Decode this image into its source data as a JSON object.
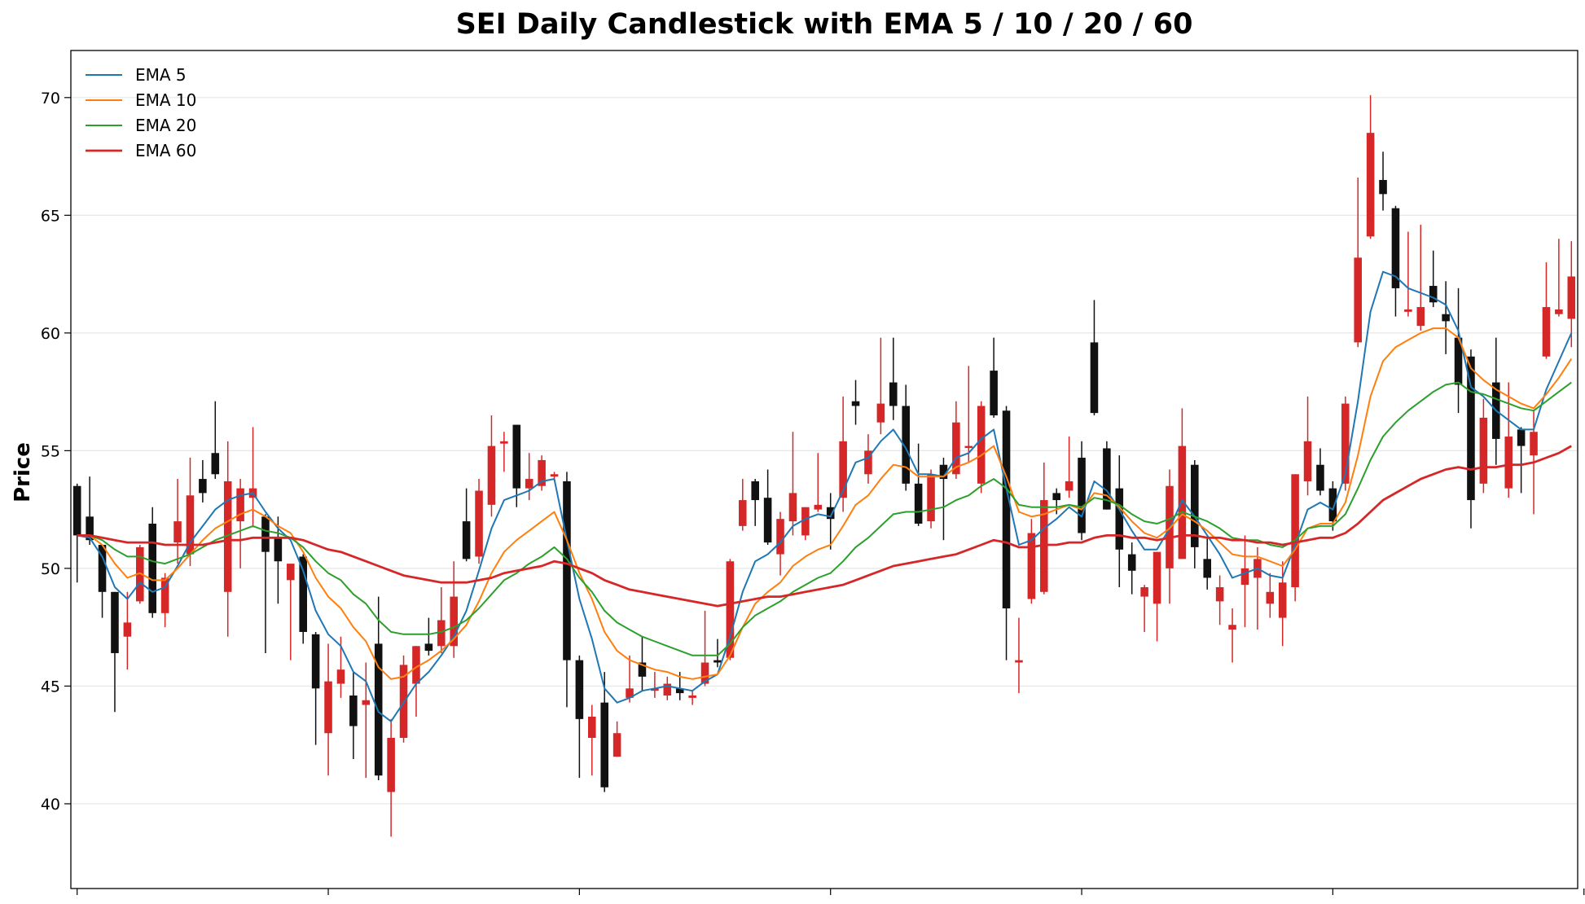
{
  "chart_data": {
    "type": "candlestick",
    "title": "SEI Daily Candlestick with EMA 5 / 10 / 20 / 60",
    "ylabel": "Price",
    "xlabel": "",
    "ylim": [
      36.4,
      72.0
    ],
    "xlim": [
      -0.5,
      119.5
    ],
    "yticks": [
      40,
      45,
      50,
      55,
      60,
      65,
      70
    ],
    "x_ticks_at": [
      0,
      20,
      40,
      60,
      80,
      100,
      120
    ],
    "grid": {
      "y": true,
      "x": false
    },
    "legend": {
      "position": "top-left",
      "entries": [
        "EMA 5",
        "EMA 10",
        "EMA 20",
        "EMA 60"
      ]
    },
    "colors": {
      "bullish": "#d62728",
      "bearish": "#111111",
      "EMA 5": "#1f77b4",
      "EMA 10": "#ff7f0e",
      "EMA 20": "#2ca02c",
      "EMA 60": "#d62728"
    },
    "candles_ohlc": [
      [
        53.5,
        53.6,
        49.4,
        51.4
      ],
      [
        52.2,
        53.9,
        51.0,
        51.2
      ],
      [
        51.0,
        51.0,
        47.9,
        49.0
      ],
      [
        49.0,
        49.0,
        43.9,
        46.4
      ],
      [
        47.1,
        49.0,
        45.7,
        47.7
      ],
      [
        48.6,
        51.0,
        48.5,
        50.9
      ],
      [
        51.9,
        52.6,
        47.9,
        48.1
      ],
      [
        48.1,
        49.8,
        47.5,
        49.6
      ],
      [
        51.1,
        53.8,
        50.2,
        52.0
      ],
      [
        50.6,
        54.7,
        50.1,
        53.1
      ],
      [
        53.8,
        54.6,
        52.8,
        53.2
      ],
      [
        54.9,
        57.1,
        53.8,
        54.0
      ],
      [
        49.0,
        55.4,
        47.1,
        53.7
      ],
      [
        52.0,
        53.8,
        50.0,
        53.4
      ],
      [
        53.0,
        56.0,
        51.8,
        53.4
      ],
      [
        52.2,
        52.3,
        46.4,
        50.7
      ],
      [
        51.3,
        52.2,
        48.5,
        50.3
      ],
      [
        49.5,
        50.2,
        46.1,
        50.2
      ],
      [
        50.5,
        50.6,
        46.8,
        47.3
      ],
      [
        47.2,
        47.3,
        42.5,
        44.9
      ],
      [
        43.0,
        46.8,
        41.2,
        45.2
      ],
      [
        45.1,
        47.1,
        44.5,
        45.7
      ],
      [
        44.6,
        45.6,
        41.9,
        43.3
      ],
      [
        44.2,
        46.0,
        41.1,
        44.4
      ],
      [
        46.8,
        48.8,
        41.0,
        41.2
      ],
      [
        40.5,
        43.6,
        38.6,
        42.8
      ],
      [
        42.8,
        46.3,
        42.6,
        45.9
      ],
      [
        45.1,
        46.7,
        43.7,
        46.7
      ],
      [
        46.8,
        47.9,
        46.3,
        46.5
      ],
      [
        46.7,
        49.2,
        46.4,
        47.8
      ],
      [
        46.7,
        50.3,
        46.2,
        48.8
      ],
      [
        52.0,
        53.4,
        50.3,
        50.4
      ],
      [
        50.5,
        53.8,
        50.2,
        53.3
      ],
      [
        52.7,
        56.5,
        52.2,
        55.2
      ],
      [
        55.3,
        55.8,
        54.1,
        55.4
      ],
      [
        56.1,
        56.1,
        52.6,
        53.4
      ],
      [
        53.4,
        54.9,
        52.9,
        53.8
      ],
      [
        53.5,
        54.8,
        53.3,
        54.6
      ],
      [
        53.9,
        54.1,
        53.8,
        54.0
      ],
      [
        53.7,
        54.1,
        44.1,
        46.1
      ],
      [
        46.1,
        46.3,
        41.1,
        43.6
      ],
      [
        42.8,
        44.2,
        41.2,
        43.7
      ],
      [
        44.3,
        45.6,
        40.5,
        40.7
      ],
      [
        42.0,
        43.5,
        42.0,
        43.0
      ],
      [
        44.5,
        46.3,
        44.3,
        44.9
      ],
      [
        46.0,
        47.1,
        44.8,
        45.4
      ],
      [
        44.8,
        45.6,
        44.5,
        44.9
      ],
      [
        44.6,
        45.4,
        44.4,
        45.1
      ],
      [
        44.9,
        45.6,
        44.4,
        44.7
      ],
      [
        44.5,
        44.8,
        44.2,
        44.6
      ],
      [
        45.1,
        48.2,
        45.0,
        46.0
      ],
      [
        46.1,
        47.0,
        45.8,
        46.0
      ],
      [
        46.2,
        50.4,
        46.1,
        50.3
      ],
      [
        51.8,
        53.8,
        51.6,
        52.9
      ],
      [
        53.7,
        53.8,
        51.8,
        52.9
      ],
      [
        53.0,
        54.2,
        51.0,
        51.1
      ],
      [
        50.6,
        52.4,
        49.7,
        52.1
      ],
      [
        52.0,
        55.8,
        51.4,
        53.2
      ],
      [
        51.4,
        52.6,
        51.2,
        52.6
      ],
      [
        52.5,
        54.9,
        52.4,
        52.7
      ],
      [
        52.6,
        53.2,
        50.8,
        52.1
      ],
      [
        53.0,
        57.3,
        52.4,
        55.4
      ],
      [
        57.1,
        58.0,
        56.1,
        56.9
      ],
      [
        54.0,
        55.7,
        53.6,
        55.0
      ],
      [
        56.2,
        59.8,
        55.7,
        57.0
      ],
      [
        57.9,
        59.8,
        56.3,
        56.9
      ],
      [
        56.9,
        57.8,
        53.3,
        53.6
      ],
      [
        53.6,
        55.3,
        51.8,
        51.9
      ],
      [
        52.0,
        54.2,
        51.7,
        54.0
      ],
      [
        54.4,
        54.7,
        51.2,
        53.8
      ],
      [
        54.0,
        57.1,
        53.8,
        56.2
      ],
      [
        55.2,
        58.6,
        54.5,
        55.2
      ],
      [
        53.6,
        57.1,
        53.2,
        56.9
      ],
      [
        58.4,
        59.8,
        56.4,
        56.5
      ],
      [
        56.7,
        56.9,
        46.1,
        48.3
      ],
      [
        46.0,
        47.9,
        44.7,
        46.1
      ],
      [
        48.7,
        52.1,
        48.5,
        51.5
      ],
      [
        49.0,
        54.5,
        48.9,
        52.9
      ],
      [
        53.2,
        53.4,
        52.3,
        52.9
      ],
      [
        53.3,
        55.6,
        53.0,
        53.7
      ],
      [
        54.7,
        55.4,
        51.2,
        51.5
      ],
      [
        59.6,
        61.4,
        56.5,
        56.6
      ],
      [
        55.1,
        55.4,
        52.5,
        52.5
      ],
      [
        53.4,
        54.8,
        49.2,
        50.8
      ],
      [
        50.6,
        51.1,
        48.9,
        49.9
      ],
      [
        48.8,
        49.3,
        47.3,
        49.2
      ],
      [
        48.5,
        50.7,
        46.9,
        50.7
      ],
      [
        50.0,
        54.2,
        48.5,
        53.5
      ],
      [
        50.4,
        56.8,
        50.4,
        55.2
      ],
      [
        54.4,
        54.6,
        50.0,
        50.9
      ],
      [
        50.4,
        51.3,
        49.1,
        49.6
      ],
      [
        48.6,
        49.7,
        47.6,
        49.2
      ],
      [
        47.4,
        48.3,
        46.0,
        47.6
      ],
      [
        49.3,
        51.4,
        47.5,
        50.0
      ],
      [
        49.6,
        50.9,
        47.4,
        50.4
      ],
      [
        48.5,
        49.8,
        47.9,
        49.0
      ],
      [
        47.9,
        50.3,
        46.7,
        49.4
      ],
      [
        49.2,
        54.0,
        48.6,
        54.0
      ],
      [
        53.7,
        57.3,
        53.1,
        55.4
      ],
      [
        54.4,
        55.1,
        53.1,
        53.3
      ],
      [
        53.4,
        53.7,
        51.6,
        52.0
      ],
      [
        53.6,
        57.3,
        53.3,
        57.0
      ],
      [
        59.6,
        66.6,
        59.4,
        63.2
      ],
      [
        64.1,
        70.1,
        64.0,
        68.5
      ],
      [
        66.5,
        67.7,
        65.2,
        65.9
      ],
      [
        65.3,
        65.4,
        60.7,
        61.9
      ],
      [
        60.9,
        64.3,
        60.7,
        61.0
      ],
      [
        60.3,
        64.6,
        60.1,
        61.1
      ],
      [
        62.0,
        63.5,
        61.1,
        61.3
      ],
      [
        60.8,
        62.2,
        59.1,
        60.5
      ],
      [
        59.8,
        61.9,
        56.6,
        57.8
      ],
      [
        59.0,
        59.3,
        51.7,
        52.9
      ],
      [
        53.6,
        57.2,
        53.2,
        56.4
      ],
      [
        57.9,
        59.8,
        54.4,
        55.5
      ],
      [
        53.4,
        57.9,
        53.0,
        55.6
      ],
      [
        55.9,
        56.0,
        53.2,
        55.2
      ],
      [
        54.8,
        56.7,
        52.3,
        55.8
      ],
      [
        59.0,
        63.0,
        58.9,
        61.1
      ],
      [
        60.8,
        64.0,
        60.7,
        61.0
      ],
      [
        60.6,
        63.9,
        59.4,
        62.4
      ]
    ],
    "series": [
      {
        "name": "EMA 5",
        "values": [
          51.4,
          51.3,
          50.5,
          49.2,
          48.7,
          49.4,
          49.0,
          49.2,
          50.1,
          51.1,
          51.8,
          52.5,
          52.9,
          53.1,
          53.2,
          52.4,
          51.7,
          51.2,
          49.9,
          48.2,
          47.2,
          46.7,
          45.6,
          45.2,
          43.9,
          43.5,
          44.3,
          45.1,
          45.6,
          46.3,
          47.1,
          48.2,
          49.9,
          51.7,
          52.9,
          53.1,
          53.3,
          53.7,
          53.8,
          51.2,
          48.7,
          47.0,
          44.9,
          44.3,
          44.5,
          44.8,
          44.9,
          45.0,
          44.9,
          44.8,
          45.2,
          45.5,
          47.1,
          49.0,
          50.3,
          50.6,
          51.1,
          51.8,
          52.1,
          52.3,
          52.2,
          53.3,
          54.5,
          54.7,
          55.4,
          55.9,
          55.1,
          54.0,
          54.0,
          53.9,
          54.7,
          54.9,
          55.5,
          55.9,
          53.4,
          51.0,
          51.2,
          51.7,
          52.1,
          52.6,
          52.2,
          53.7,
          53.3,
          52.5,
          51.6,
          50.8,
          50.8,
          51.7,
          52.9,
          52.2,
          51.4,
          50.6,
          49.6,
          49.8,
          50.0,
          49.7,
          49.6,
          51.0,
          52.5,
          52.8,
          52.5,
          54.0,
          57.1,
          60.9,
          62.6,
          62.4,
          61.9,
          61.7,
          61.5,
          61.2,
          60.1,
          57.7,
          57.3,
          56.7,
          56.3,
          55.9,
          55.9,
          57.6,
          58.8,
          60.0
        ]
      },
      {
        "name": "EMA 10",
        "values": [
          51.4,
          51.4,
          51.0,
          50.2,
          49.6,
          49.8,
          49.5,
          49.5,
          50.0,
          50.6,
          51.2,
          51.7,
          52.0,
          52.3,
          52.5,
          52.2,
          51.8,
          51.5,
          50.7,
          49.6,
          48.8,
          48.3,
          47.5,
          46.9,
          45.8,
          45.3,
          45.4,
          45.8,
          46.1,
          46.5,
          47.0,
          47.6,
          48.6,
          49.8,
          50.7,
          51.2,
          51.6,
          52.0,
          52.4,
          51.2,
          49.8,
          48.7,
          47.3,
          46.5,
          46.1,
          45.9,
          45.7,
          45.6,
          45.4,
          45.3,
          45.4,
          45.5,
          46.3,
          47.5,
          48.5,
          49.0,
          49.4,
          50.1,
          50.5,
          50.8,
          51.0,
          51.8,
          52.7,
          53.1,
          53.8,
          54.4,
          54.3,
          53.9,
          53.9,
          53.9,
          54.3,
          54.5,
          54.8,
          55.2,
          53.9,
          52.4,
          52.2,
          52.3,
          52.5,
          52.7,
          52.5,
          53.2,
          53.1,
          52.6,
          52.0,
          51.5,
          51.3,
          51.7,
          52.3,
          52.0,
          51.6,
          51.1,
          50.6,
          50.5,
          50.5,
          50.3,
          50.1,
          50.8,
          51.7,
          51.9,
          51.9,
          52.8,
          54.8,
          57.3,
          58.8,
          59.4,
          59.7,
          60.0,
          60.2,
          60.2,
          59.8,
          58.5,
          58.0,
          57.6,
          57.3,
          57.0,
          56.8,
          57.4,
          58.1,
          58.9
        ]
      },
      {
        "name": "EMA 20",
        "values": [
          51.4,
          51.4,
          51.2,
          50.8,
          50.5,
          50.5,
          50.3,
          50.2,
          50.4,
          50.6,
          50.9,
          51.2,
          51.4,
          51.6,
          51.8,
          51.6,
          51.5,
          51.3,
          50.9,
          50.3,
          49.8,
          49.5,
          48.9,
          48.5,
          47.8,
          47.3,
          47.2,
          47.2,
          47.2,
          47.3,
          47.5,
          47.8,
          48.3,
          48.9,
          49.5,
          49.8,
          50.2,
          50.5,
          50.9,
          50.4,
          49.6,
          49.0,
          48.2,
          47.7,
          47.4,
          47.1,
          46.9,
          46.7,
          46.5,
          46.3,
          46.3,
          46.3,
          46.8,
          47.5,
          48.0,
          48.3,
          48.6,
          49.0,
          49.3,
          49.6,
          49.8,
          50.3,
          50.9,
          51.3,
          51.8,
          52.3,
          52.4,
          52.4,
          52.5,
          52.6,
          52.9,
          53.1,
          53.5,
          53.8,
          53.4,
          52.7,
          52.6,
          52.6,
          52.6,
          52.7,
          52.6,
          53.0,
          52.9,
          52.7,
          52.3,
          52.0,
          51.9,
          52.1,
          52.4,
          52.2,
          52.0,
          51.7,
          51.3,
          51.2,
          51.2,
          51.0,
          50.9,
          51.2,
          51.7,
          51.8,
          51.8,
          52.3,
          53.4,
          54.6,
          55.6,
          56.2,
          56.7,
          57.1,
          57.5,
          57.8,
          57.9,
          57.5,
          57.4,
          57.2,
          57.0,
          56.8,
          56.7,
          57.1,
          57.5,
          57.9
        ]
      },
      {
        "name": "EMA 60",
        "values": [
          51.4,
          51.4,
          51.3,
          51.2,
          51.1,
          51.1,
          51.1,
          51.0,
          51.0,
          51.0,
          51.0,
          51.1,
          51.2,
          51.2,
          51.3,
          51.3,
          51.3,
          51.3,
          51.2,
          51.0,
          50.8,
          50.7,
          50.5,
          50.3,
          50.1,
          49.9,
          49.7,
          49.6,
          49.5,
          49.4,
          49.4,
          49.4,
          49.5,
          49.6,
          49.8,
          49.9,
          50.0,
          50.1,
          50.3,
          50.2,
          50.0,
          49.8,
          49.5,
          49.3,
          49.1,
          49.0,
          48.9,
          48.8,
          48.7,
          48.6,
          48.5,
          48.4,
          48.5,
          48.6,
          48.7,
          48.8,
          48.8,
          48.9,
          49.0,
          49.1,
          49.2,
          49.3,
          49.5,
          49.7,
          49.9,
          50.1,
          50.2,
          50.3,
          50.4,
          50.5,
          50.6,
          50.8,
          51.0,
          51.2,
          51.1,
          50.9,
          50.9,
          51.0,
          51.0,
          51.1,
          51.1,
          51.3,
          51.4,
          51.4,
          51.3,
          51.3,
          51.2,
          51.3,
          51.4,
          51.4,
          51.3,
          51.3,
          51.2,
          51.2,
          51.1,
          51.1,
          51.0,
          51.1,
          51.2,
          51.3,
          51.3,
          51.5,
          51.9,
          52.4,
          52.9,
          53.2,
          53.5,
          53.8,
          54.0,
          54.2,
          54.3,
          54.2,
          54.3,
          54.3,
          54.4,
          54.4,
          54.5,
          54.7,
          54.9,
          55.2
        ]
      }
    ]
  }
}
